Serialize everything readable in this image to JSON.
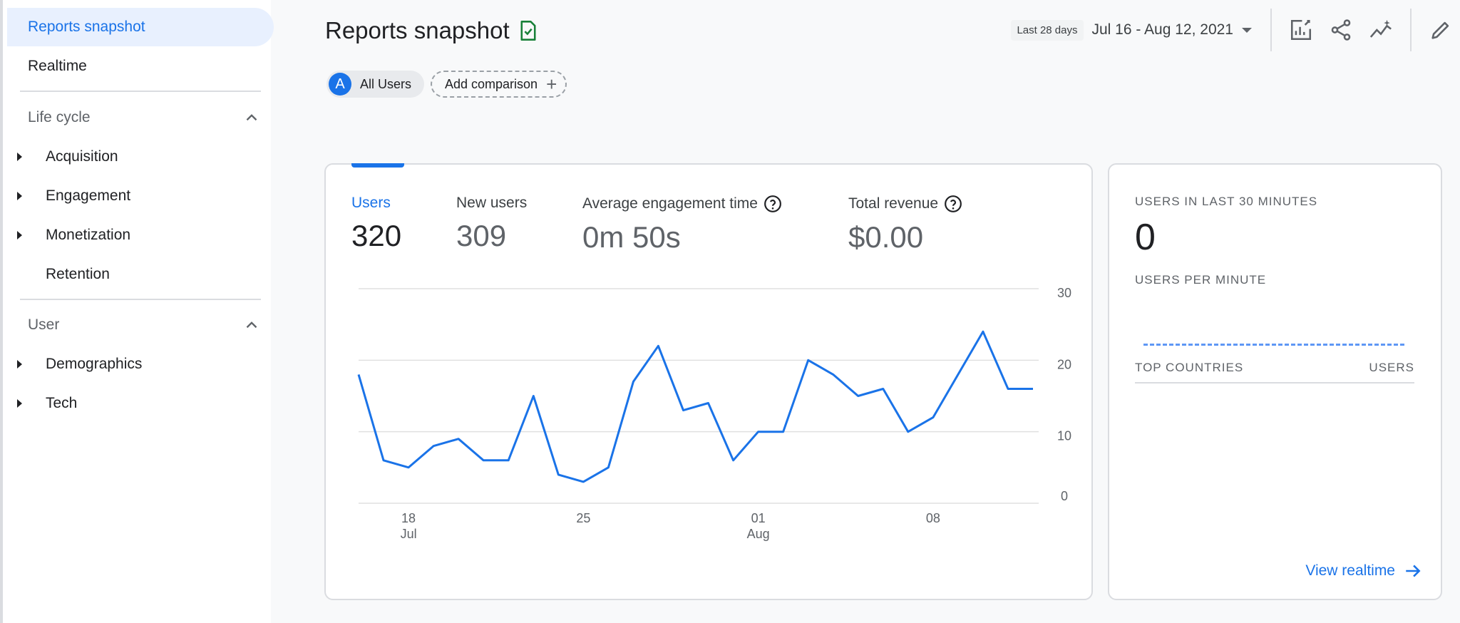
{
  "sidebar": {
    "active_item": "Reports snapshot",
    "realtime": "Realtime",
    "sections": [
      {
        "title": "Life cycle",
        "items": [
          "Acquisition",
          "Engagement",
          "Monetization",
          "Retention"
        ]
      },
      {
        "title": "User",
        "items": [
          "Demographics",
          "Tech"
        ]
      }
    ]
  },
  "header": {
    "title": "Reports snapshot",
    "date_chip": "Last 28 days",
    "date_range": "Jul 16 - Aug 12, 2021"
  },
  "comparison": {
    "segment_avatar": "A",
    "segment_label": "All Users",
    "add_label": "Add comparison"
  },
  "metrics": [
    {
      "label": "Users",
      "value": "320"
    },
    {
      "label": "New users",
      "value": "309"
    },
    {
      "label": "Average engagement time",
      "value": "0m 50s"
    },
    {
      "label": "Total revenue",
      "value": "$0.00"
    }
  ],
  "chart_data": {
    "type": "line",
    "x": [
      "Jul 16",
      "Jul 17",
      "Jul 18",
      "Jul 19",
      "Jul 20",
      "Jul 21",
      "Jul 22",
      "Jul 23",
      "Jul 24",
      "Jul 25",
      "Jul 26",
      "Jul 27",
      "Jul 28",
      "Jul 29",
      "Jul 30",
      "Jul 31",
      "Aug 01",
      "Aug 02",
      "Aug 03",
      "Aug 04",
      "Aug 05",
      "Aug 06",
      "Aug 07",
      "Aug 08",
      "Aug 09",
      "Aug 10",
      "Aug 11",
      "Aug 12"
    ],
    "series": [
      {
        "values": [
          18,
          6,
          5,
          8,
          9,
          6,
          6,
          15,
          4,
          3,
          5,
          17,
          22,
          13,
          14,
          6,
          10,
          10,
          20,
          18,
          15,
          16,
          10,
          12,
          18,
          24,
          16,
          16
        ]
      }
    ],
    "x_ticks": [
      {
        "index": 2,
        "day": "18",
        "month": "Jul"
      },
      {
        "index": 9,
        "day": "25",
        "month": ""
      },
      {
        "index": 16,
        "day": "01",
        "month": "Aug"
      },
      {
        "index": 23,
        "day": "08",
        "month": ""
      }
    ],
    "y_ticks": [
      "0",
      "10",
      "20",
      "30"
    ],
    "ylim": [
      0,
      30
    ],
    "grid": true,
    "color": "#1a73e8"
  },
  "realtime": {
    "users_last_30_label": "USERS IN LAST 30 MINUTES",
    "users_last_30_value": "0",
    "per_minute_label": "USERS PER MINUTE",
    "top_countries_label": "TOP COUNTRIES",
    "users_col_label": "USERS",
    "link_label": "View realtime"
  },
  "colors": {
    "accent": "#1a73e8",
    "active_bg": "#e8f0fe",
    "check_green": "#188038"
  }
}
